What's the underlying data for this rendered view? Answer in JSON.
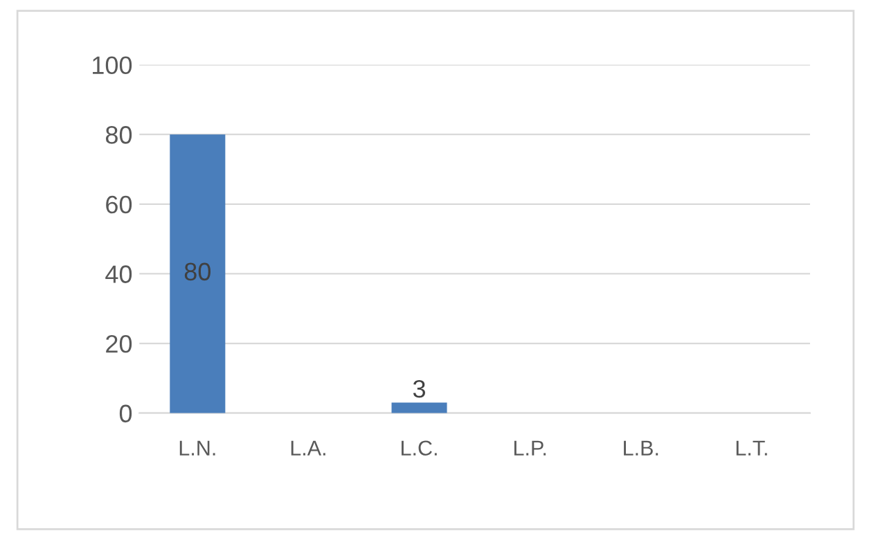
{
  "chart_data": {
    "type": "bar",
    "categories": [
      "L.N.",
      "L.A.",
      "L.C.",
      "L.P.",
      "L.B.",
      "L.T."
    ],
    "values": [
      80,
      0,
      3,
      0,
      0,
      0
    ],
    "value_labels": [
      "80",
      null,
      "3",
      null,
      null,
      null
    ],
    "color": "#4a7ebb",
    "ylim": [
      0,
      100
    ],
    "yticks": [
      0,
      20,
      40,
      60,
      80,
      100
    ],
    "grid": "y",
    "legend": false
  }
}
